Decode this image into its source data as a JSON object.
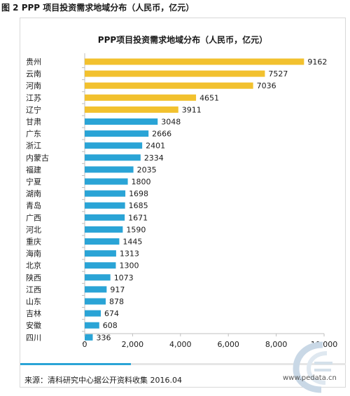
{
  "figure": {
    "caption": "图 2 PPP 项目投资需求地域分布（人民币，亿元）"
  },
  "footer": {
    "source": "来源：清科研究中心据公开资料收集 2016.04",
    "website": "www.pedata.cn"
  },
  "colors": {
    "highlight": "#f2c12e",
    "normal": "#2aa4d6",
    "axis": "#bfbfbf",
    "accent_bar": "#2aa4d6"
  },
  "chart_data": {
    "type": "bar",
    "orientation": "horizontal",
    "title": "PPP项目投资需求地域分布（人民币，亿元）",
    "categories": [
      "贵州",
      "云南",
      "河南",
      "江苏",
      "辽宁",
      "甘肃",
      "广东",
      "浙江",
      "内蒙古",
      "福建",
      "宁夏",
      "湖南",
      "青岛",
      "广西",
      "河北",
      "重庆",
      "海南",
      "北京",
      "陕西",
      "江西",
      "山东",
      "吉林",
      "安徽",
      "四川"
    ],
    "values": [
      9162,
      7527,
      7036,
      4651,
      3911,
      3048,
      2666,
      2401,
      2334,
      2035,
      1800,
      1698,
      1685,
      1671,
      1590,
      1445,
      1313,
      1300,
      1073,
      917,
      878,
      674,
      608,
      336
    ],
    "highlight_count": 5,
    "xlim": [
      0,
      10000
    ],
    "xticks": [
      0,
      2000,
      4000,
      6000,
      8000,
      10000
    ],
    "xtick_labels": [
      "0",
      "2,000",
      "4,000",
      "6,000",
      "8,000",
      "10,000"
    ],
    "grid": false,
    "xlabel": "",
    "ylabel": ""
  }
}
